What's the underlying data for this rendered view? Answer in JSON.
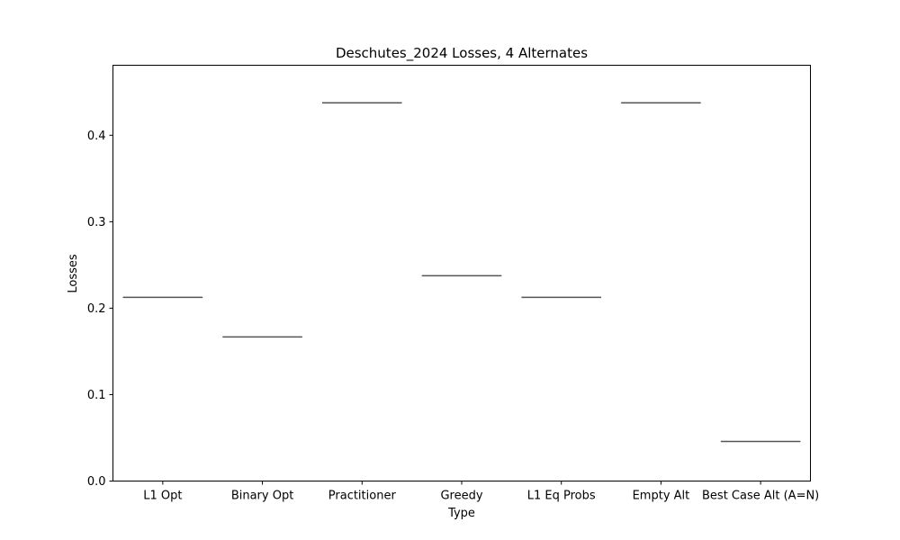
{
  "chart_data": {
    "type": "box",
    "title": "Deschutes_2024 Losses, 4 Alternates",
    "xlabel": "Type",
    "ylabel": "Losses",
    "categories": [
      "L1 Opt",
      "Binary Opt",
      "Practitioner",
      "Greedy",
      "L1 Eq Probs",
      "Empty Alt",
      "Best Case Alt (A=N)"
    ],
    "values": [
      0.2125,
      0.1667,
      0.4375,
      0.2375,
      0.2125,
      0.4375,
      0.0458
    ],
    "yticks": [
      0.0,
      0.1,
      0.2,
      0.3,
      0.4
    ],
    "ytick_labels": [
      "0.0",
      "0.1",
      "0.2",
      "0.3",
      "0.4"
    ],
    "ylim": [
      0.0,
      0.481
    ],
    "grid": false,
    "line_color": "#555555"
  }
}
